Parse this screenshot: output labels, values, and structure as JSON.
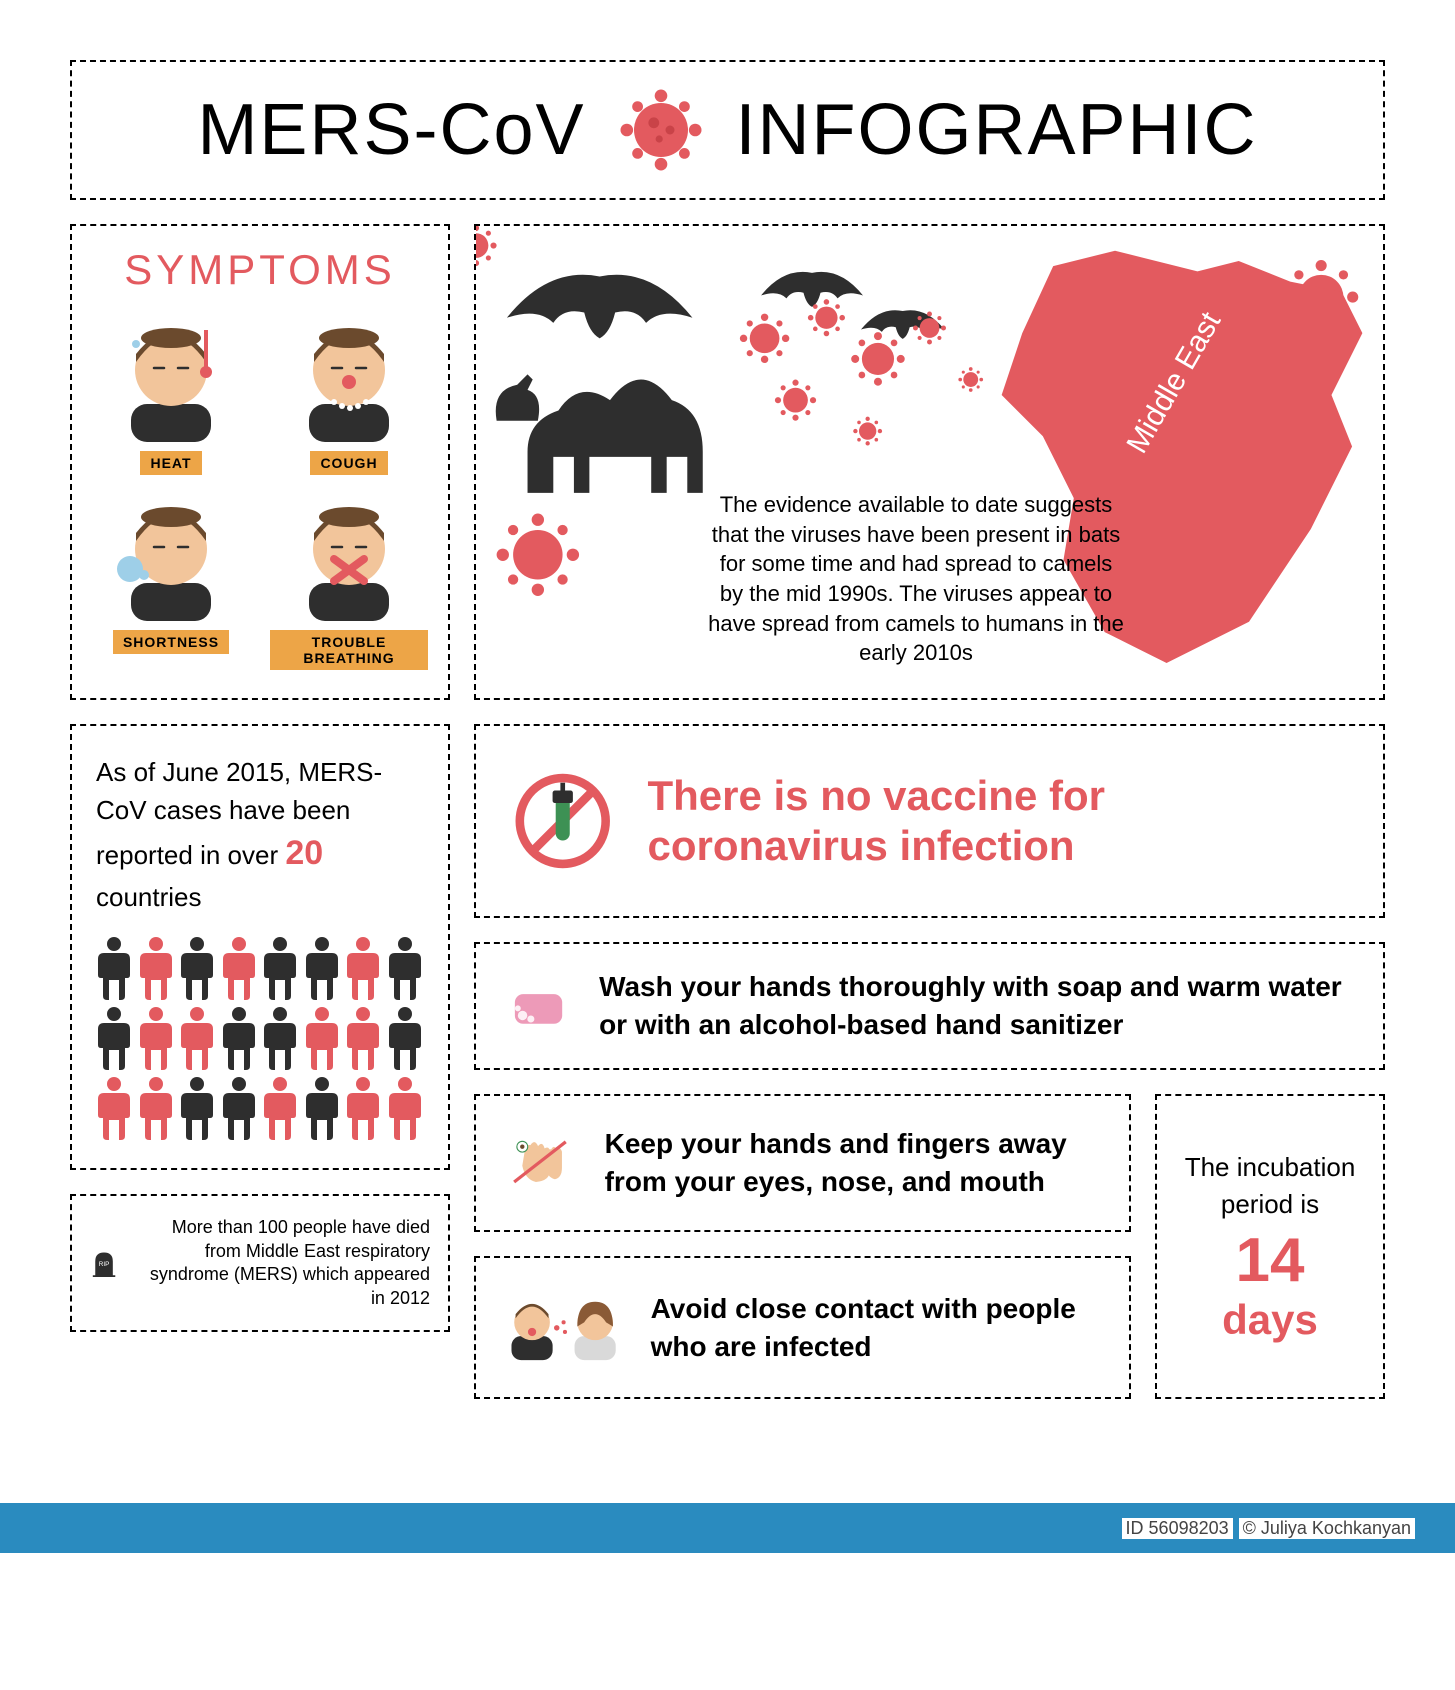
{
  "colors": {
    "accent": "#e35a5f",
    "dark": "#2e2e2e",
    "label_bg": "#eda547",
    "pink": "#ed9ab8",
    "green": "#3d9154",
    "footer_bg": "#2a8bbf",
    "skin": "#f2c59b",
    "hair": "#6b4a2d"
  },
  "header": {
    "left": "MERS-CoV",
    "right": "INFOGRAPHIC"
  },
  "symptoms": {
    "title": "SYMPTOMS",
    "items": [
      "HEAT",
      "COUGH",
      "SHORTNESS",
      "TROUBLE BREATHING"
    ]
  },
  "origin": {
    "map_label": "Middle East",
    "text": "The evidence available to date suggests that the viruses have been present in bats for some time and had spread to camels by the mid 1990s. The viruses appear to have spread from camels to humans in the early 2010s"
  },
  "countries": {
    "pre": "As of June 2015, MERS-CoV cases have been reported in over ",
    "num": "20",
    "post": " countries",
    "people_colors": [
      "d",
      "a",
      "d",
      "a",
      "d",
      "d",
      "a",
      "d",
      "d",
      "a",
      "a",
      "d",
      "d",
      "a",
      "a",
      "d",
      "a",
      "a",
      "d",
      "d",
      "a",
      "d",
      "a",
      "a"
    ]
  },
  "rip": {
    "label": "RIP",
    "text": "More than 100 people have died from Middle East respiratory syndrome (MERS) which appeared in 2012"
  },
  "vaccine": {
    "text": "There is no vaccine for coronavirus infection"
  },
  "tips": {
    "wash": "Wash your hands thoroughly with soap and warm water or with an alcohol-based hand sanitizer",
    "touch": "Keep your hands and fingers away from your eyes, nose, and mouth",
    "contact": "Avoid close contact with people who are infected"
  },
  "incubation": {
    "text": "The incubation period is",
    "num": "14",
    "days": "days"
  },
  "footer": {
    "id": "ID 56098203",
    "copy": "© Juliya Kochkanyan"
  }
}
